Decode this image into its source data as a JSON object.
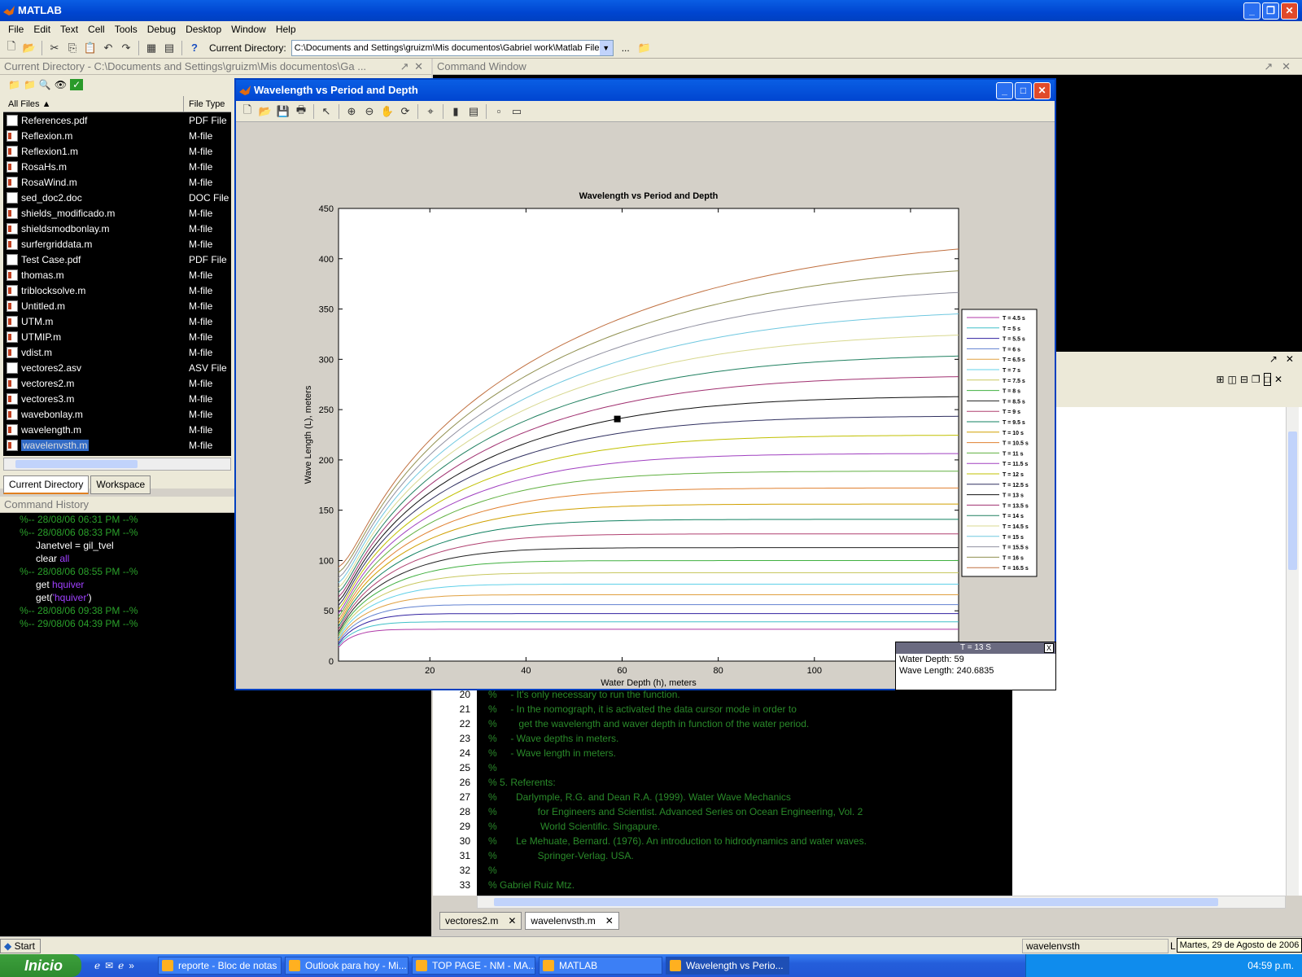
{
  "app_title": "MATLAB",
  "menu": [
    "File",
    "Edit",
    "Text",
    "Cell",
    "Tools",
    "Debug",
    "Desktop",
    "Window",
    "Help"
  ],
  "toolbar": {
    "curdir_label": "Current Directory:",
    "curdir_value": "C:\\Documents and Settings\\gruizm\\Mis documentos\\Gabriel work\\Matlab Files",
    "browse": "..."
  },
  "curdir_panel": {
    "title": "Current Directory - C:\\Documents and Settings\\gruizm\\Mis documentos\\Ga ...",
    "col_name": "All Files",
    "col_type": "File Type",
    "files": [
      {
        "name": "References.pdf",
        "type": "PDF File"
      },
      {
        "name": "Reflexion.m",
        "type": "M-file"
      },
      {
        "name": "Reflexion1.m",
        "type": "M-file"
      },
      {
        "name": "RosaHs.m",
        "type": "M-file"
      },
      {
        "name": "RosaWind.m",
        "type": "M-file"
      },
      {
        "name": "sed_doc2.doc",
        "type": "DOC File"
      },
      {
        "name": "shields_modificado.m",
        "type": "M-file"
      },
      {
        "name": "shieldsmodbonlay.m",
        "type": "M-file"
      },
      {
        "name": "surfergriddata.m",
        "type": "M-file"
      },
      {
        "name": "Test Case.pdf",
        "type": "PDF File"
      },
      {
        "name": "thomas.m",
        "type": "M-file"
      },
      {
        "name": "triblocksolve.m",
        "type": "M-file"
      },
      {
        "name": "Untitled.m",
        "type": "M-file"
      },
      {
        "name": "UTM.m",
        "type": "M-file"
      },
      {
        "name": "UTMIP.m",
        "type": "M-file"
      },
      {
        "name": "vdist.m",
        "type": "M-file"
      },
      {
        "name": "vectores2.asv",
        "type": "ASV File"
      },
      {
        "name": "vectores2.m",
        "type": "M-file"
      },
      {
        "name": "vectores3.m",
        "type": "M-file"
      },
      {
        "name": "wavebonlay.m",
        "type": "M-file"
      },
      {
        "name": "wavelength.m",
        "type": "M-file"
      },
      {
        "name": "wavelenvsth.m",
        "type": "M-file"
      }
    ],
    "tabs": [
      "Current Directory",
      "Workspace"
    ]
  },
  "cmd_history": {
    "title": "Command History",
    "lines": [
      {
        "text": "%-- 28/08/06 06:31 PM --%",
        "kind": "session"
      },
      {
        "text": "%-- 28/08/06 08:33 PM --%",
        "kind": "session"
      },
      {
        "text": "Janetvel = gil_tvel",
        "kind": "cmd"
      },
      {
        "text": "clear ",
        "extra": "all",
        "kind": "cmd"
      },
      {
        "text": "%-- 28/08/06 08:55 PM --%",
        "kind": "session"
      },
      {
        "text": "get ",
        "extra": "hquiver",
        "kind": "cmd"
      },
      {
        "text": "get(",
        "extra": "'hquiver'",
        "tail": ")",
        "kind": "cmd"
      },
      {
        "text": "%-- 28/08/06 09:38 PM --%",
        "kind": "session"
      },
      {
        "text": "%-- 29/08/06 04:39 PM --%",
        "kind": "session"
      }
    ]
  },
  "cmd_window_title": "Command Window",
  "editor_code": [
    {
      "n": "20",
      "t": "%     - It's only necessary to run the function."
    },
    {
      "n": "21",
      "t": "%     - In the nomograph, it is activated the data cursor mode in order to"
    },
    {
      "n": "22",
      "t": "%        get the wavelength and waver depth in function of the water period."
    },
    {
      "n": "23",
      "t": "%     - Wave depths in meters."
    },
    {
      "n": "24",
      "t": "%     - Wave length in meters."
    },
    {
      "n": "25",
      "t": "%"
    },
    {
      "n": "26",
      "t": "% 5. Referents:"
    },
    {
      "n": "27",
      "t": "%       Darlymple, R.G. and Dean R.A. (1999). Water Wave Mechanics"
    },
    {
      "n": "28",
      "t": "%               for Engineers and Scientist. Advanced Series on Ocean Engineering, Vol. 2"
    },
    {
      "n": "29",
      "t": "%                World Scientific. Singapure."
    },
    {
      "n": "30",
      "t": "%       Le Mehuate, Bernard. (1976). An introduction to hidrodynamics and water waves."
    },
    {
      "n": "31",
      "t": "%               Springer-Verlag. USA."
    },
    {
      "n": "32",
      "t": "%"
    },
    {
      "n": "33",
      "t": "% Gabriel Ruiz Mtz."
    }
  ],
  "editor_tabs": [
    "vectores2.m",
    "wavelenvsth.m"
  ],
  "figure": {
    "window_title": "Wavelength vs Period and Depth"
  },
  "chart_data": {
    "type": "line",
    "title": "Wavelength vs Period and Depth",
    "xlabel": "Water Depth (h), meters",
    "ylabel": "Wave Length (L), meters",
    "xlim": [
      1,
      130
    ],
    "ylim": [
      0,
      450
    ],
    "xticks": [
      20,
      40,
      60,
      80,
      100,
      120
    ],
    "yticks": [
      0,
      50,
      100,
      150,
      200,
      250,
      300,
      350,
      400,
      450
    ],
    "legend_position": "right",
    "series": [
      {
        "name": "T = 4.5 s",
        "period": 4.5,
        "color": "#b03aa8"
      },
      {
        "name": "T = 5 s",
        "period": 5,
        "color": "#40c0c8"
      },
      {
        "name": "T = 5.5 s",
        "period": 5.5,
        "color": "#3020a0"
      },
      {
        "name": "T = 6 s",
        "period": 6,
        "color": "#6080d0"
      },
      {
        "name": "T = 6.5 s",
        "period": 6.5,
        "color": "#e0a040"
      },
      {
        "name": "T = 7 s",
        "period": 7,
        "color": "#60d0e8"
      },
      {
        "name": "T = 7.5 s",
        "period": 7.5,
        "color": "#c8c860"
      },
      {
        "name": "T = 8 s",
        "period": 8,
        "color": "#40b040"
      },
      {
        "name": "T = 8.5 s",
        "period": 8.5,
        "color": "#202020"
      },
      {
        "name": "T = 9 s",
        "period": 9,
        "color": "#b04070"
      },
      {
        "name": "T = 9.5 s",
        "period": 9.5,
        "color": "#108060"
      },
      {
        "name": "T = 10 s",
        "period": 10,
        "color": "#d0a000"
      },
      {
        "name": "T = 10.5 s",
        "period": 10.5,
        "color": "#e08030"
      },
      {
        "name": "T = 11 s",
        "period": 11,
        "color": "#60b040"
      },
      {
        "name": "T = 11.5 s",
        "period": 11.5,
        "color": "#a040c0"
      },
      {
        "name": "T = 12 s",
        "period": 12,
        "color": "#c0c000"
      },
      {
        "name": "T = 12.5 s",
        "period": 12.5,
        "color": "#303060"
      },
      {
        "name": "T = 13 s",
        "period": 13,
        "color": "#101010"
      },
      {
        "name": "T = 13.5 s",
        "period": 13.5,
        "color": "#a03070"
      },
      {
        "name": "T = 14 s",
        "period": 14,
        "color": "#208060"
      },
      {
        "name": "T = 14.5 s",
        "period": 14.5,
        "color": "#d8d890"
      },
      {
        "name": "T = 15 s",
        "period": 15,
        "color": "#70c8e0"
      },
      {
        "name": "T = 15.5 s",
        "period": 15.5,
        "color": "#9090a0"
      },
      {
        "name": "T = 16 s",
        "period": 16,
        "color": "#909050"
      },
      {
        "name": "T = 16.5 s",
        "period": 16.5,
        "color": "#c07040"
      }
    ],
    "data_cursor": {
      "series": "T = 13 S",
      "water_depth": 59,
      "wave_length": 240.6835
    }
  },
  "datatip": {
    "title": "T = 13 S",
    "line1": "Water Depth: 59",
    "line2": "Wave Length: 240.6835"
  },
  "status": {
    "text": "wavelenvsth",
    "right": "L"
  },
  "date_tip": "Martes, 29 de Agosto de 2006",
  "taskbar": {
    "start": "Inicio",
    "tasks": [
      "reporte - Bloc de notas",
      "Outlook para hoy - Mi...",
      "TOP PAGE - NM - MA...",
      "MATLAB",
      "Wavelength vs Perio..."
    ],
    "clock": "04:59 p.m."
  },
  "start_button": "Start"
}
